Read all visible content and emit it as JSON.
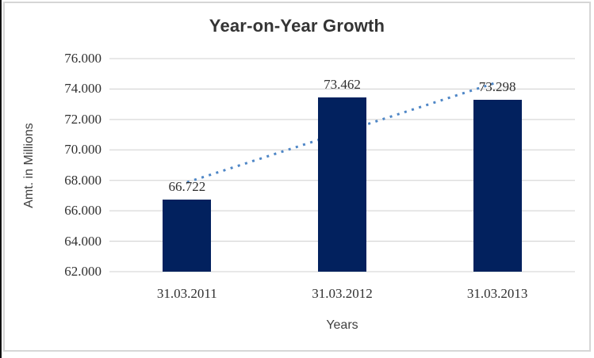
{
  "window": {
    "background": "#ffffff",
    "frame_border_color": "#d6d6d6",
    "left_edge_color": "#111111"
  },
  "chart_data": {
    "type": "bar",
    "title": "Year-on-Year Growth",
    "xlabel": "Years",
    "ylabel": "Amt. in Millions",
    "categories": [
      "31.03.2011",
      "31.03.2012",
      "31.03.2013"
    ],
    "values": [
      66.722,
      73.462,
      73.298
    ],
    "data_labels": [
      "66.722",
      "73.462",
      "73.298"
    ],
    "ylim": [
      62,
      76
    ],
    "ytick_step": 2,
    "ytick_labels": [
      "62.000",
      "64.000",
      "66.000",
      "68.000",
      "70.000",
      "72.000",
      "74.000",
      "76.000"
    ],
    "grid": true,
    "legend": "none",
    "bar_color": "#02215E",
    "gridline_color": "#d9d9d9",
    "text_color": "#303030",
    "trendline": {
      "type": "linear",
      "style": "dotted",
      "color": "#4E86C6"
    }
  }
}
